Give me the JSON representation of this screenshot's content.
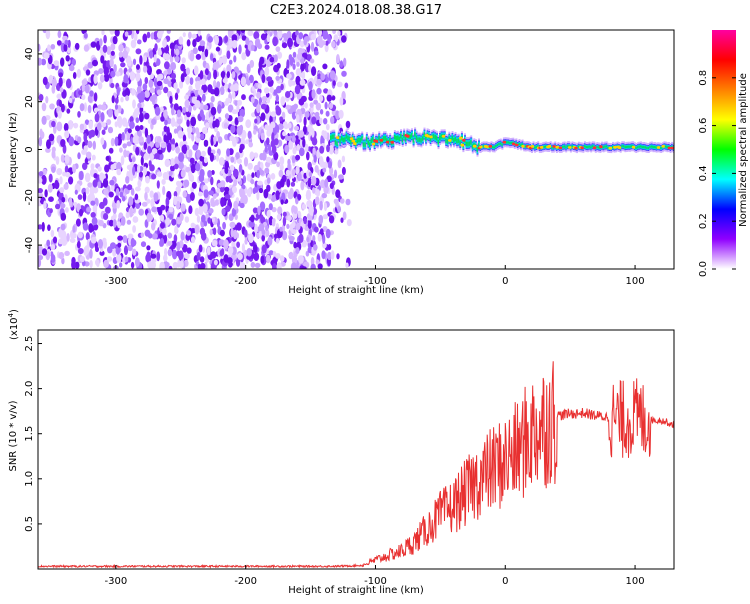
{
  "title": "C2E3.2024.018.08.38.G17",
  "colors": {
    "snr_line": "#e83030",
    "frame": "#000000",
    "spectrogram_noise": "#7a1ff0",
    "spectrogram_signal_core": "#ff3030",
    "spectrogram_signal_mid": "#00e070",
    "spectrogram_signal_edge": "#2040ff"
  },
  "chart_data": [
    {
      "type": "heatmap",
      "xlabel": "Height of straight line (km)",
      "ylabel": "Frequency (Hz)",
      "xlim": [
        -360,
        130
      ],
      "ylim": [
        -50,
        50
      ],
      "x_ticks": [
        -300,
        -200,
        -100,
        0,
        100
      ],
      "y_ticks": [
        -40,
        -20,
        0,
        20,
        40
      ],
      "noise_region_x": [
        -360,
        -120
      ],
      "signal_track": {
        "x": [
          -135,
          -120,
          -100,
          -80,
          -60,
          -40,
          -30,
          -20,
          -10,
          0,
          20,
          40,
          60,
          80,
          100,
          130
        ],
        "freq": [
          4,
          4,
          3,
          5,
          5,
          4,
          3,
          1,
          1,
          3,
          1,
          1,
          1,
          1,
          1,
          1
        ]
      },
      "colorbar": {
        "label": "Normalized spectral amplitude",
        "ticks": [
          "0.0",
          "0.2",
          "0.4",
          "0.6",
          "0.8"
        ],
        "range": [
          0,
          1
        ],
        "colors": [
          "#ffffff",
          "#9000ff",
          "#0000ff",
          "#00ffff",
          "#00ff00",
          "#ffff00",
          "#ff8000",
          "#ff0000",
          "#ff00a0"
        ]
      }
    },
    {
      "type": "line",
      "xlabel": "Height of straight line (km)",
      "ylabel": "SNR (10 * v/v)",
      "y_multiplier": "(x10",
      "y_multiplier_exp": "4",
      "y_multiplier_close": ")",
      "xlim": [
        -360,
        130
      ],
      "ylim": [
        0,
        2.65
      ],
      "x_ticks": [
        -300,
        -200,
        -100,
        0,
        100
      ],
      "y_ticks": [
        "0.5",
        "1.0",
        "1.5",
        "2.0",
        "2.5"
      ],
      "series": [
        {
          "x": [
            -360,
            -200,
            -130,
            -110,
            -100,
            -90,
            -80,
            -70,
            -60,
            -50,
            -40,
            -30,
            -20,
            -10,
            0,
            10,
            20,
            30,
            40,
            50,
            60,
            70,
            80,
            90,
            100,
            110,
            120,
            130
          ],
          "y": [
            0.03,
            0.03,
            0.03,
            0.04,
            0.1,
            0.15,
            0.2,
            0.3,
            0.45,
            0.6,
            0.7,
            0.85,
            1.0,
            1.1,
            1.2,
            1.3,
            1.5,
            1.6,
            1.7,
            1.72,
            1.73,
            1.7,
            1.68,
            1.65,
            1.68,
            1.65,
            1.65,
            1.6
          ]
        }
      ]
    }
  ]
}
